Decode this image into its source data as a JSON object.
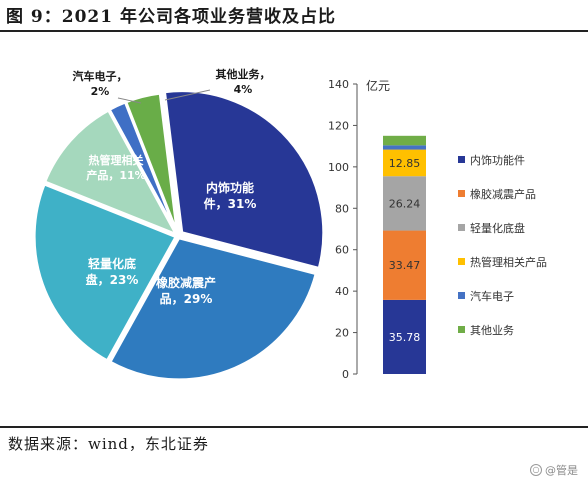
{
  "title": "图 9：2021 年公司各项业务营收及占比",
  "source": "数据来源：wind，东北证券",
  "watermark": "@管是",
  "chart_data": [
    {
      "type": "pie",
      "slices": [
        {
          "name": "内饰功能件",
          "label_lines": [
            "内饰功能",
            "件，31%"
          ],
          "percent": 31,
          "color": "#273796"
        },
        {
          "name": "橡胶减震产品",
          "label_lines": [
            "橡胶减震产",
            "品，29%"
          ],
          "percent": 29,
          "color": "#2f7bbf"
        },
        {
          "name": "轻量化底盘",
          "label_lines": [
            "轻量化底",
            "盘，23%"
          ],
          "percent": 23,
          "color": "#3fb1c7"
        },
        {
          "name": "热管理相关产品",
          "label_lines": [
            "热管理相关",
            "产品，11%"
          ],
          "percent": 11,
          "color": "#a5d8bd"
        },
        {
          "name": "汽车电子",
          "label_lines": [
            "汽车电子，",
            "2%"
          ],
          "percent": 2,
          "color": "#3f6fc5"
        },
        {
          "name": "其他业务",
          "label_lines": [
            "其他业务，",
            "4%"
          ],
          "percent": 4,
          "color": "#69ad48"
        }
      ]
    },
    {
      "type": "bar",
      "stacked": true,
      "ylabel": "亿元",
      "ylim": [
        0,
        140
      ],
      "yticks": [
        0,
        20,
        40,
        60,
        80,
        100,
        120,
        140
      ],
      "grid": false,
      "legend_position": "right",
      "series": [
        {
          "name": "内饰功能件",
          "value": 35.78,
          "label": "35.78",
          "color": "#273796",
          "label_color": "#ffffff"
        },
        {
          "name": "橡胶减震产品",
          "value": 33.47,
          "label": "33.47",
          "color": "#ee7d31",
          "label_color": "#333333"
        },
        {
          "name": "轻量化底盘",
          "value": 26.24,
          "label": "26.24",
          "color": "#a5a5a5",
          "label_color": "#333333"
        },
        {
          "name": "热管理相关产品",
          "value": 12.85,
          "label": "12.85",
          "color": "#ffc000",
          "label_color": "#333333"
        },
        {
          "name": "汽车电子",
          "value": 2.05,
          "label": "",
          "color": "#4472c4",
          "label_color": "#333333"
        },
        {
          "name": "其他业务",
          "value": 4.6,
          "label": "",
          "color": "#70ad47",
          "label_color": "#333333"
        }
      ]
    }
  ]
}
